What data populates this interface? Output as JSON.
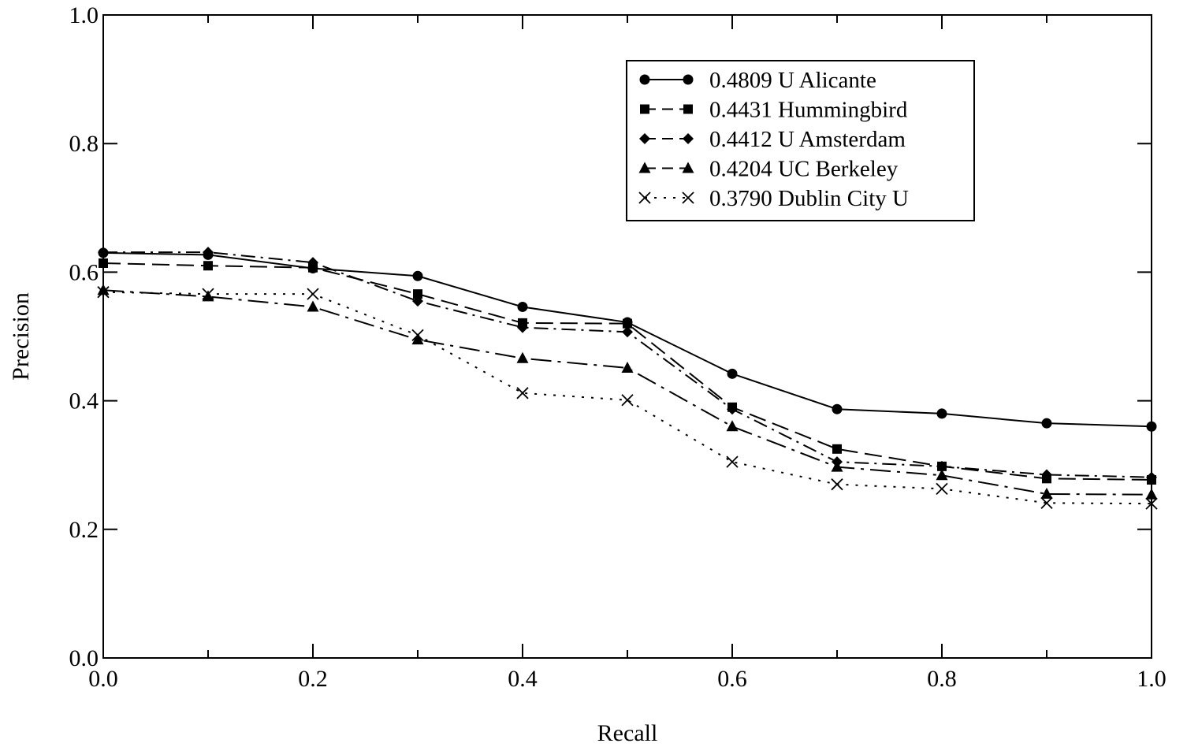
{
  "chart_data": {
    "type": "line",
    "title": "",
    "xlabel": "Recall",
    "ylabel": "Precision",
    "xlim": [
      0,
      1
    ],
    "ylim": [
      0,
      1
    ],
    "x_ticks": [
      "0.0",
      "0.2",
      "0.4",
      "0.6",
      "0.8",
      "1.0"
    ],
    "y_ticks": [
      "0.0",
      "0.2",
      "0.4",
      "0.6",
      "0.8",
      "1.0"
    ],
    "grid": false,
    "legend_position": "top-right",
    "x": [
      0.0,
      0.1,
      0.2,
      0.3,
      0.4,
      0.5,
      0.6,
      0.7,
      0.8,
      0.9,
      1.0
    ],
    "series": [
      {
        "name": "0.4809 U Alicante",
        "marker": "circle",
        "line_style": "solid",
        "values": [
          0.63,
          0.627,
          0.606,
          0.594,
          0.546,
          0.522,
          0.442,
          0.387,
          0.38,
          0.365,
          0.36
        ]
      },
      {
        "name": "0.4431 Hummingbird",
        "marker": "square",
        "line_style": "dashed",
        "values": [
          0.614,
          0.61,
          0.607,
          0.566,
          0.521,
          0.52,
          0.39,
          0.325,
          0.298,
          0.279,
          0.277
        ]
      },
      {
        "name": "0.4412 U Amsterdam",
        "marker": "diamond",
        "line_style": "dash-dot",
        "values": [
          0.631,
          0.631,
          0.615,
          0.555,
          0.514,
          0.507,
          0.387,
          0.305,
          0.298,
          0.285,
          0.281
        ]
      },
      {
        "name": "0.4204 UC Berkeley",
        "marker": "triangle",
        "line_style": "long-dash-dot",
        "values": [
          0.572,
          0.562,
          0.546,
          0.495,
          0.466,
          0.451,
          0.36,
          0.297,
          0.284,
          0.255,
          0.254
        ]
      },
      {
        "name": "0.3790 Dublin City U",
        "marker": "cross",
        "line_style": "dotted",
        "values": [
          0.569,
          0.566,
          0.566,
          0.502,
          0.412,
          0.401,
          0.305,
          0.27,
          0.263,
          0.241,
          0.24
        ]
      }
    ]
  }
}
